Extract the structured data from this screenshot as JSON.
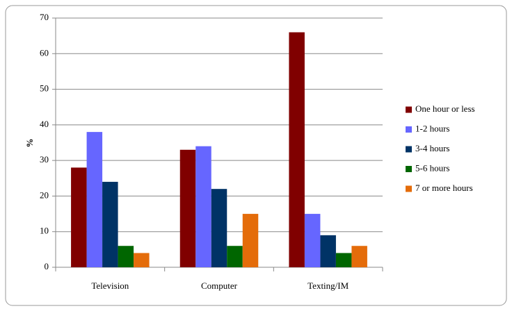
{
  "chart_data": {
    "type": "bar",
    "y_label": "%",
    "categories": [
      "Television",
      "Computer",
      "Texting/IM"
    ],
    "series": [
      {
        "name": "One hour or less",
        "color": "#800000",
        "values": [
          28,
          33,
          66
        ]
      },
      {
        "name": "1-2 hours",
        "color": "#6666ff",
        "values": [
          38,
          34,
          15
        ]
      },
      {
        "name": "3-4 hours",
        "color": "#003366",
        "values": [
          24,
          22,
          9
        ]
      },
      {
        "name": "5-6 hours",
        "color": "#006600",
        "values": [
          6,
          6,
          4
        ]
      },
      {
        "name": "7 or more hours",
        "color": "#e46c0a",
        "values": [
          4,
          15,
          6
        ]
      }
    ],
    "ylim": [
      0,
      70
    ],
    "yticks": [
      0,
      10,
      20,
      30,
      40,
      50,
      60,
      70
    ],
    "grid": true,
    "legend": "right"
  }
}
